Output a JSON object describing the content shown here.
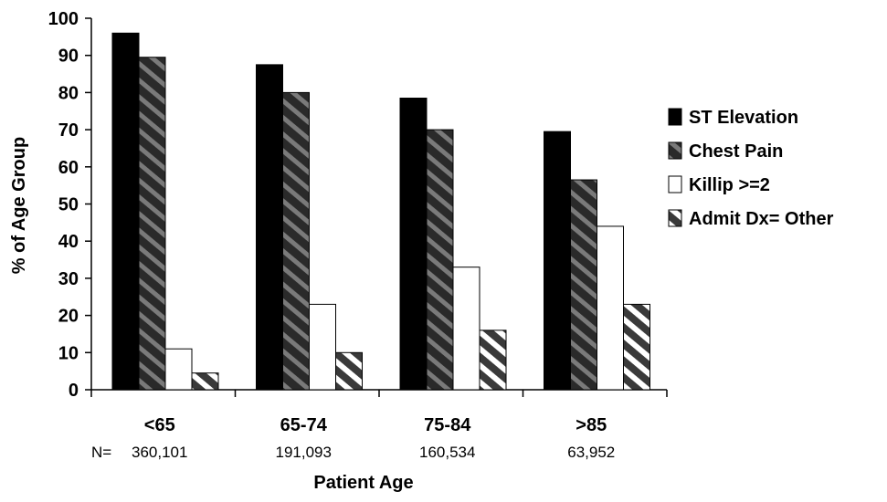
{
  "chart_data": {
    "type": "bar",
    "categories": [
      "<65",
      "65-74",
      "75-84",
      ">85"
    ],
    "n_prefix": "N=",
    "n_values": [
      "360,101",
      "191,093",
      "160,534",
      "63,952"
    ],
    "series": [
      {
        "name": "ST Elevation",
        "values": [
          96,
          87.5,
          78.5,
          69.5
        ],
        "fill": "#000000",
        "pattern": "solid"
      },
      {
        "name": "Chest Pain",
        "values": [
          89.5,
          80,
          70,
          56.5
        ],
        "fill": "#444444",
        "pattern": "diagonal-dark"
      },
      {
        "name": "Killip >=2",
        "values": [
          11,
          23,
          33,
          44
        ],
        "fill": "#ffffff",
        "pattern": "none"
      },
      {
        "name": "Admit Dx= Other",
        "values": [
          4.5,
          10,
          16,
          23
        ],
        "fill": "#444444",
        "pattern": "diagonal-light"
      }
    ],
    "xlabel": "Patient Age",
    "ylabel": "% of Age Group",
    "ylim": [
      0,
      100
    ],
    "yticks": [
      0,
      10,
      20,
      30,
      40,
      50,
      60,
      70,
      80,
      90,
      100
    ],
    "legend": "right",
    "grid": false
  }
}
